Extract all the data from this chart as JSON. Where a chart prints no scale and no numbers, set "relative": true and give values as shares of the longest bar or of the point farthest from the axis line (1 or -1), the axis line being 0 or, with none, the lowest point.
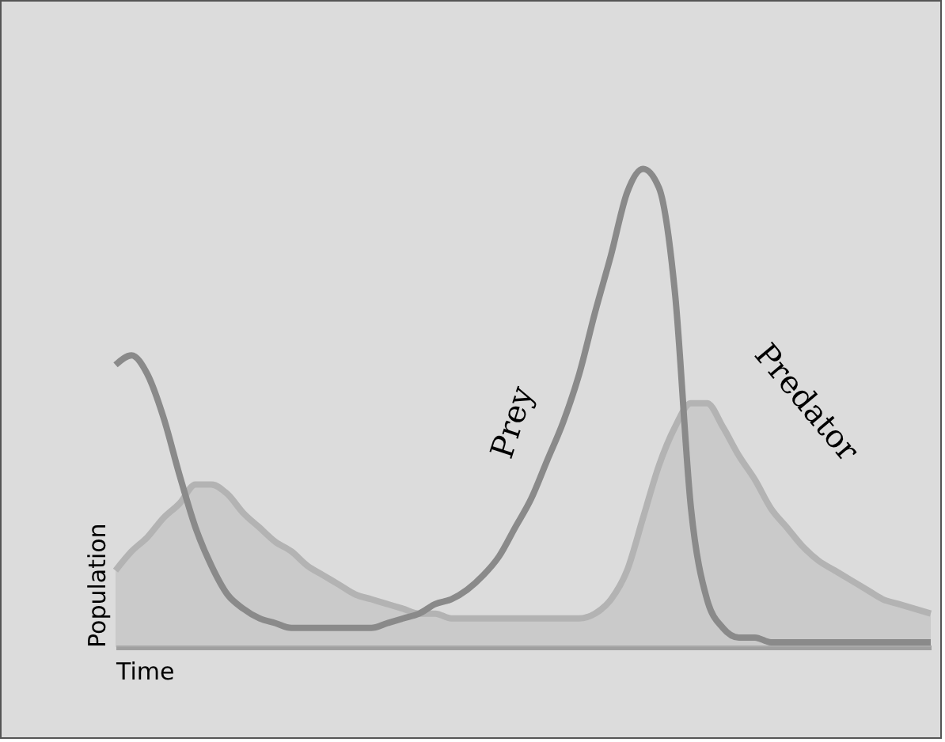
{
  "chart_data": {
    "type": "area",
    "relative": true,
    "xlabel": "Time",
    "ylabel": "Population",
    "categories": [
      null,
      null,
      null,
      null,
      null,
      null,
      null,
      null,
      null,
      null,
      null,
      null,
      null,
      null,
      null,
      null,
      null,
      null,
      null,
      null,
      null,
      null,
      null,
      null,
      null,
      null,
      null,
      null,
      null,
      null,
      null,
      null,
      null,
      null,
      null,
      null,
      null,
      null,
      null,
      null,
      null,
      null,
      null,
      null,
      null,
      null,
      null,
      null,
      null,
      null,
      null,
      null
    ],
    "series": [
      {
        "name": "Predator",
        "color": "#b3b3b3",
        "values": [
          0.16,
          0.2,
          0.23,
          0.27,
          0.3,
          0.34,
          0.34,
          0.32,
          0.28,
          0.25,
          0.22,
          0.2,
          0.17,
          0.15,
          0.13,
          0.11,
          0.1,
          0.09,
          0.08,
          0.07,
          0.07,
          0.06,
          0.06,
          0.06,
          0.06,
          0.06,
          0.06,
          0.06,
          0.06,
          0.06,
          0.07,
          0.1,
          0.16,
          0.27,
          0.38,
          0.46,
          0.51,
          0.51,
          0.46,
          0.4,
          0.35,
          0.29,
          0.25,
          0.21,
          0.18,
          0.16,
          0.14,
          0.12,
          0.1,
          0.09,
          0.08,
          0.07
        ]
      },
      {
        "name": "Prey",
        "type": "line",
        "color": "#8a8a8a",
        "values": [
          0.59,
          0.61,
          0.57,
          0.48,
          0.36,
          0.25,
          0.17,
          0.11,
          0.08,
          0.06,
          0.05,
          0.04,
          0.04,
          0.04,
          0.04,
          0.04,
          0.04,
          0.05,
          0.06,
          0.07,
          0.09,
          0.1,
          0.12,
          0.15,
          0.19,
          0.25,
          0.31,
          0.39,
          0.47,
          0.57,
          0.7,
          0.82,
          0.95,
          1.0,
          0.96,
          0.74,
          0.29,
          0.1,
          0.04,
          0.02,
          0.02,
          0.01,
          0.01,
          0.01,
          0.01,
          0.01,
          0.01,
          0.01,
          0.01,
          0.01,
          0.01,
          0.01
        ]
      }
    ]
  }
}
